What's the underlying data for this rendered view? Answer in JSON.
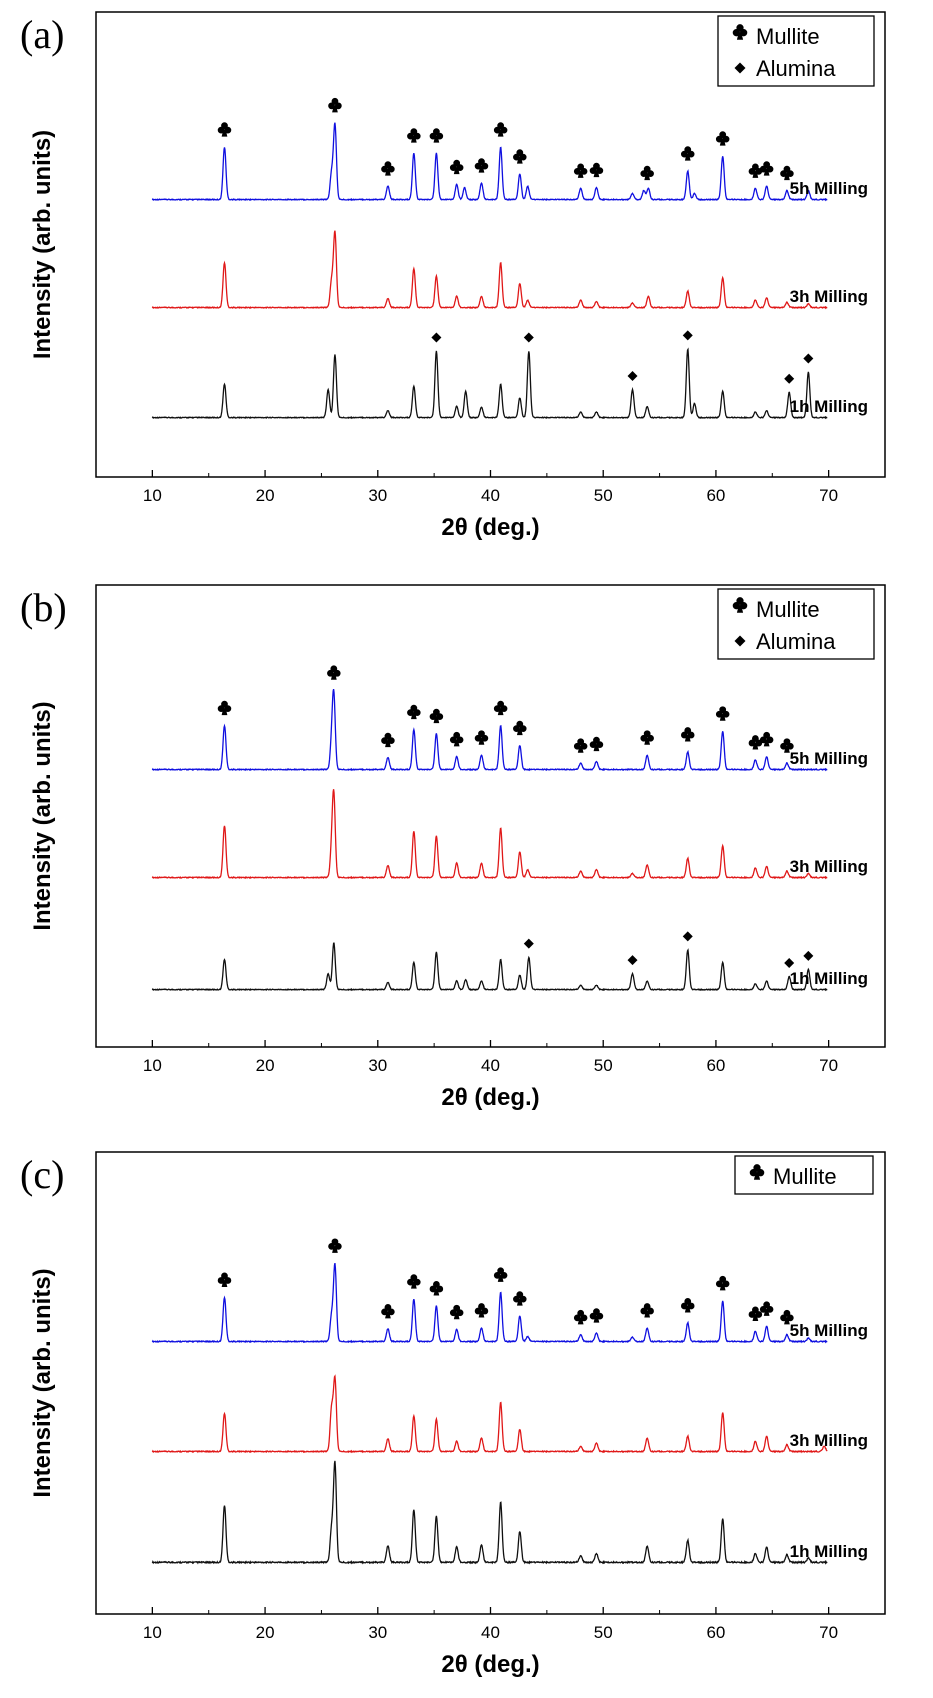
{
  "chart_data": [
    {
      "type": "line",
      "panel_label": "(a)",
      "xlabel": "2θ (deg.)",
      "ylabel": "Intensity (arb. units)",
      "xlim": [
        5,
        75
      ],
      "xticks": [
        10,
        20,
        30,
        40,
        50,
        60,
        70
      ],
      "legend": [
        {
          "marker": "club",
          "label": "Mullite"
        },
        {
          "marker": "diamond",
          "label": "Alumina"
        }
      ],
      "series": [
        {
          "name": "5h Milling",
          "color": "#1010e0",
          "peaks": [
            [
              16.4,
              0.7
            ],
            [
              25.9,
              0.35
            ],
            [
              26.2,
              1.0
            ],
            [
              30.9,
              0.18
            ],
            [
              33.2,
              0.62
            ],
            [
              35.2,
              0.62
            ],
            [
              37.0,
              0.2
            ],
            [
              37.7,
              0.16
            ],
            [
              39.2,
              0.22
            ],
            [
              40.9,
              0.7
            ],
            [
              42.6,
              0.34
            ],
            [
              43.3,
              0.18
            ],
            [
              48.0,
              0.15
            ],
            [
              49.4,
              0.16
            ],
            [
              52.6,
              0.08
            ],
            [
              53.6,
              0.12
            ],
            [
              54.0,
              0.15
            ],
            [
              57.5,
              0.38
            ],
            [
              58.1,
              0.08
            ],
            [
              60.6,
              0.58
            ],
            [
              63.5,
              0.15
            ],
            [
              64.5,
              0.18
            ],
            [
              66.3,
              0.12
            ],
            [
              68.2,
              0.12
            ]
          ],
          "markers": [
            {
              "type": "club",
              "x": [
                16.4,
                26.2,
                30.9,
                33.2,
                35.2,
                37.0,
                39.2,
                40.9,
                42.6,
                48.0,
                49.4,
                53.9,
                57.5,
                60.6,
                63.5,
                64.5,
                66.3
              ]
            }
          ]
        },
        {
          "name": "3h Milling",
          "color": "#e01818",
          "peaks": [
            [
              16.4,
              0.6
            ],
            [
              25.9,
              0.35
            ],
            [
              26.2,
              1.0
            ],
            [
              30.9,
              0.12
            ],
            [
              33.2,
              0.52
            ],
            [
              35.2,
              0.42
            ],
            [
              37.0,
              0.15
            ],
            [
              39.2,
              0.15
            ],
            [
              40.9,
              0.6
            ],
            [
              42.6,
              0.32
            ],
            [
              43.3,
              0.1
            ],
            [
              48.0,
              0.1
            ],
            [
              49.4,
              0.08
            ],
            [
              52.6,
              0.06
            ],
            [
              54.0,
              0.15
            ],
            [
              57.5,
              0.22
            ],
            [
              60.6,
              0.4
            ],
            [
              63.5,
              0.1
            ],
            [
              64.5,
              0.13
            ],
            [
              66.3,
              0.07
            ],
            [
              68.2,
              0.05
            ]
          ],
          "markers": []
        },
        {
          "name": "1h Milling",
          "color": "#101010",
          "peaks": [
            [
              16.4,
              0.48
            ],
            [
              25.6,
              0.4
            ],
            [
              26.2,
              0.9
            ],
            [
              30.9,
              0.1
            ],
            [
              33.2,
              0.45
            ],
            [
              35.2,
              0.95
            ],
            [
              37.0,
              0.16
            ],
            [
              37.8,
              0.38
            ],
            [
              39.2,
              0.15
            ],
            [
              40.9,
              0.48
            ],
            [
              42.6,
              0.28
            ],
            [
              43.4,
              0.95
            ],
            [
              48.0,
              0.08
            ],
            [
              49.4,
              0.08
            ],
            [
              52.6,
              0.4
            ],
            [
              53.9,
              0.16
            ],
            [
              57.5,
              0.98
            ],
            [
              58.1,
              0.2
            ],
            [
              60.6,
              0.38
            ],
            [
              63.5,
              0.08
            ],
            [
              64.5,
              0.1
            ],
            [
              66.5,
              0.36
            ],
            [
              68.2,
              0.65
            ]
          ],
          "markers": [
            {
              "type": "diamond",
              "x": [
                35.2,
                43.4,
                52.6,
                57.5,
                66.5,
                68.2
              ]
            }
          ]
        }
      ]
    },
    {
      "type": "line",
      "panel_label": "(b)",
      "xlabel": "2θ (deg.)",
      "ylabel": "Intensity (arb. units)",
      "xlim": [
        5,
        75
      ],
      "xticks": [
        10,
        20,
        30,
        40,
        50,
        60,
        70
      ],
      "legend": [
        {
          "marker": "club",
          "label": "Mullite"
        },
        {
          "marker": "diamond",
          "label": "Alumina"
        }
      ],
      "series": [
        {
          "name": "5h Milling",
          "color": "#1010e0",
          "peaks": [
            [
              16.4,
              0.55
            ],
            [
              25.9,
              0.3
            ],
            [
              26.1,
              0.9
            ],
            [
              30.9,
              0.15
            ],
            [
              33.2,
              0.5
            ],
            [
              35.2,
              0.45
            ],
            [
              37.0,
              0.16
            ],
            [
              39.2,
              0.18
            ],
            [
              40.9,
              0.55
            ],
            [
              42.6,
              0.3
            ],
            [
              48.0,
              0.08
            ],
            [
              49.4,
              0.1
            ],
            [
              53.9,
              0.18
            ],
            [
              57.5,
              0.22
            ],
            [
              60.6,
              0.48
            ],
            [
              63.5,
              0.12
            ],
            [
              64.5,
              0.16
            ],
            [
              66.3,
              0.08
            ]
          ],
          "markers": [
            {
              "type": "club",
              "x": [
                16.4,
                26.1,
                30.9,
                33.2,
                35.2,
                37.0,
                39.2,
                40.9,
                42.6,
                48.0,
                49.4,
                53.9,
                57.5,
                60.6,
                63.5,
                64.5,
                66.3
              ]
            }
          ]
        },
        {
          "name": "3h Milling",
          "color": "#e01818",
          "peaks": [
            [
              16.4,
              0.65
            ],
            [
              25.9,
              0.3
            ],
            [
              26.1,
              1.0
            ],
            [
              30.9,
              0.15
            ],
            [
              33.2,
              0.58
            ],
            [
              35.2,
              0.52
            ],
            [
              37.0,
              0.18
            ],
            [
              39.2,
              0.18
            ],
            [
              40.9,
              0.62
            ],
            [
              42.6,
              0.32
            ],
            [
              43.3,
              0.1
            ],
            [
              48.0,
              0.08
            ],
            [
              49.4,
              0.1
            ],
            [
              52.6,
              0.05
            ],
            [
              53.9,
              0.16
            ],
            [
              57.5,
              0.24
            ],
            [
              60.6,
              0.4
            ],
            [
              63.5,
              0.12
            ],
            [
              64.5,
              0.14
            ],
            [
              66.3,
              0.08
            ],
            [
              68.2,
              0.05
            ]
          ],
          "markers": []
        },
        {
          "name": "1h Milling",
          "color": "#101010",
          "peaks": [
            [
              16.4,
              0.42
            ],
            [
              25.6,
              0.22
            ],
            [
              26.1,
              0.65
            ],
            [
              30.9,
              0.1
            ],
            [
              33.2,
              0.38
            ],
            [
              35.2,
              0.52
            ],
            [
              37.0,
              0.12
            ],
            [
              37.8,
              0.14
            ],
            [
              39.2,
              0.12
            ],
            [
              40.9,
              0.42
            ],
            [
              42.6,
              0.2
            ],
            [
              43.4,
              0.45
            ],
            [
              48.0,
              0.06
            ],
            [
              49.4,
              0.06
            ],
            [
              52.6,
              0.22
            ],
            [
              53.9,
              0.12
            ],
            [
              57.5,
              0.55
            ],
            [
              60.6,
              0.38
            ],
            [
              63.5,
              0.08
            ],
            [
              64.5,
              0.12
            ],
            [
              66.5,
              0.18
            ],
            [
              68.2,
              0.28
            ]
          ],
          "markers": [
            {
              "type": "diamond",
              "x": [
                43.4,
                52.6,
                57.5,
                66.5,
                68.2
              ]
            }
          ]
        }
      ]
    },
    {
      "type": "line",
      "panel_label": "(c)",
      "xlabel": "2θ (deg.)",
      "ylabel": "Intensity (arb. units)",
      "xlim": [
        5,
        75
      ],
      "xticks": [
        10,
        20,
        30,
        40,
        50,
        60,
        70
      ],
      "legend": [
        {
          "marker": "club",
          "label": "Mullite"
        }
      ],
      "series": [
        {
          "name": "5h Milling",
          "color": "#1010e0",
          "peaks": [
            [
              16.4,
              0.52
            ],
            [
              25.9,
              0.3
            ],
            [
              26.2,
              0.9
            ],
            [
              30.9,
              0.15
            ],
            [
              33.2,
              0.5
            ],
            [
              35.2,
              0.42
            ],
            [
              37.0,
              0.14
            ],
            [
              39.2,
              0.16
            ],
            [
              40.9,
              0.58
            ],
            [
              42.6,
              0.3
            ],
            [
              43.3,
              0.06
            ],
            [
              48.0,
              0.08
            ],
            [
              49.4,
              0.1
            ],
            [
              52.6,
              0.05
            ],
            [
              53.9,
              0.16
            ],
            [
              57.5,
              0.22
            ],
            [
              60.6,
              0.48
            ],
            [
              63.5,
              0.12
            ],
            [
              64.5,
              0.18
            ],
            [
              66.3,
              0.08
            ],
            [
              68.2,
              0.04
            ]
          ],
          "markers": [
            {
              "type": "club",
              "x": [
                16.4,
                26.2,
                30.9,
                33.2,
                35.2,
                37.0,
                39.2,
                40.9,
                42.6,
                48.0,
                49.4,
                53.9,
                57.5,
                60.6,
                63.5,
                64.5,
                66.3
              ]
            }
          ]
        },
        {
          "name": "3h Milling",
          "color": "#e01818",
          "peaks": [
            [
              16.4,
              0.45
            ],
            [
              25.9,
              0.5
            ],
            [
              26.2,
              0.85
            ],
            [
              30.9,
              0.15
            ],
            [
              33.2,
              0.42
            ],
            [
              35.2,
              0.38
            ],
            [
              37.0,
              0.12
            ],
            [
              39.2,
              0.16
            ],
            [
              40.9,
              0.58
            ],
            [
              42.6,
              0.26
            ],
            [
              48.0,
              0.06
            ],
            [
              49.4,
              0.1
            ],
            [
              53.9,
              0.16
            ],
            [
              57.5,
              0.18
            ],
            [
              60.6,
              0.46
            ],
            [
              63.5,
              0.12
            ],
            [
              64.5,
              0.18
            ],
            [
              66.3,
              0.08
            ],
            [
              69.6,
              0.06
            ]
          ],
          "markers": []
        },
        {
          "name": "1h Milling",
          "color": "#101010",
          "peaks": [
            [
              16.4,
              0.52
            ],
            [
              25.9,
              0.3
            ],
            [
              26.2,
              0.9
            ],
            [
              30.9,
              0.15
            ],
            [
              33.2,
              0.48
            ],
            [
              35.2,
              0.42
            ],
            [
              37.0,
              0.14
            ],
            [
              39.2,
              0.16
            ],
            [
              40.9,
              0.55
            ],
            [
              42.6,
              0.28
            ],
            [
              48.0,
              0.06
            ],
            [
              49.4,
              0.08
            ],
            [
              53.9,
              0.15
            ],
            [
              57.5,
              0.2
            ],
            [
              60.6,
              0.4
            ],
            [
              63.5,
              0.08
            ],
            [
              64.5,
              0.14
            ],
            [
              66.3,
              0.07
            ],
            [
              68.2,
              0.04
            ]
          ],
          "markers": []
        }
      ]
    }
  ]
}
